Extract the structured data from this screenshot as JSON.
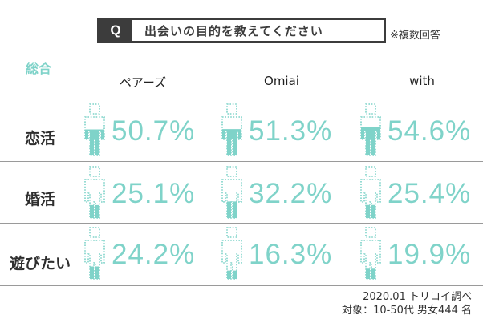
{
  "question": {
    "marker": "Q",
    "text": "出会いの目的を教えてください",
    "note": "※複数回答"
  },
  "legend_label": "総合",
  "colors": {
    "accent": "#7fd3c9",
    "dark": "#3c3c3c"
  },
  "chart_data": {
    "type": "table",
    "columns": [
      "ペアーズ",
      "Omiai",
      "with"
    ],
    "rows": [
      {
        "label": "恋活",
        "values": [
          50.7,
          51.3,
          54.6
        ],
        "display": [
          "50.7%",
          "51.3%",
          "54.6%"
        ]
      },
      {
        "label": "婚活",
        "values": [
          25.1,
          32.2,
          25.4
        ],
        "display": [
          "25.1%",
          "32.2%",
          "25.4%"
        ]
      },
      {
        "label": "遊びたい",
        "values": [
          24.2,
          16.3,
          19.9
        ],
        "display": [
          "24.2%",
          "16.3%",
          "19.9%"
        ]
      }
    ],
    "unit": "%"
  },
  "footer": {
    "line1": "2020.01 トリコイ調べ",
    "line2": "対象：10-50代 男女444 名"
  }
}
